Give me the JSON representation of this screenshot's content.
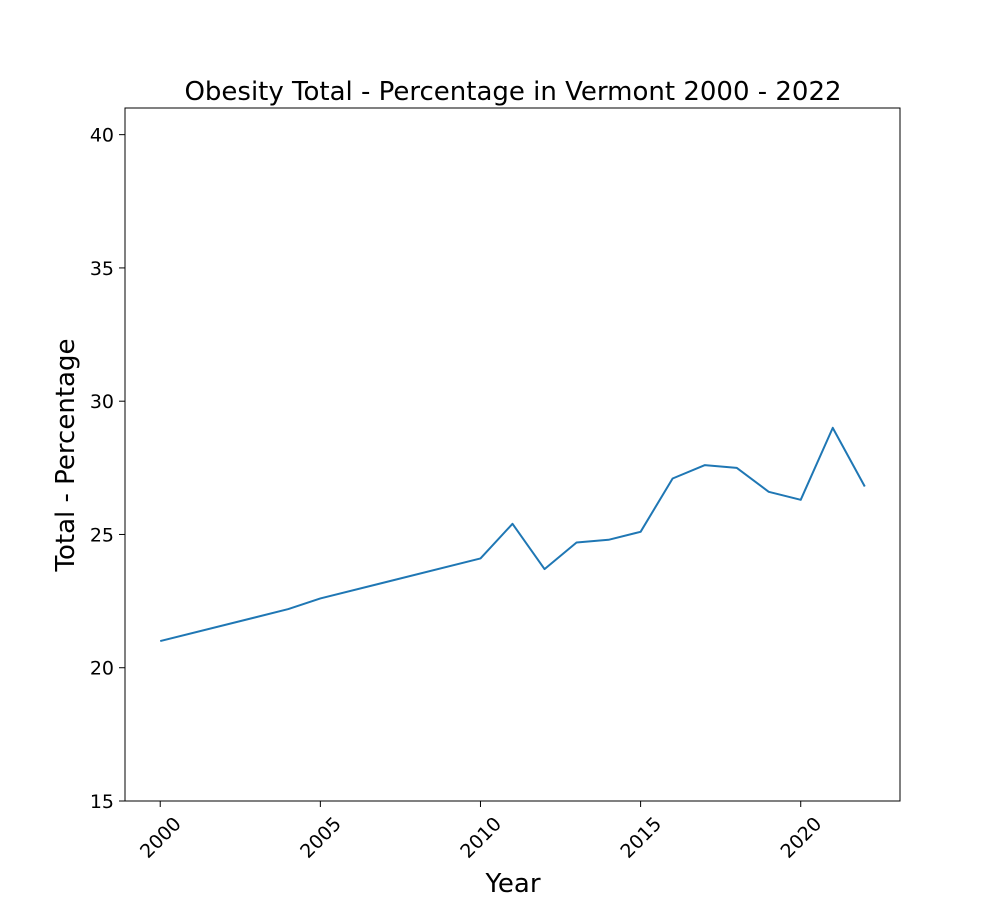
{
  "chart_data": {
    "type": "line",
    "title": "Obesity Total - Percentage in Vermont 2000 - 2022",
    "xlabel": "Year",
    "ylabel": "Total - Percentage",
    "x": [
      2000,
      2004,
      2005,
      2010,
      2011,
      2012,
      2013,
      2014,
      2015,
      2016,
      2017,
      2018,
      2019,
      2020,
      2021,
      2022
    ],
    "series": [
      {
        "values": [
          21.0,
          22.2,
          22.6,
          24.1,
          25.4,
          23.7,
          24.7,
          24.8,
          25.1,
          27.1,
          27.6,
          27.5,
          26.6,
          26.3,
          29.0,
          26.8
        ]
      }
    ],
    "xlim": [
      1998.9,
      2023.1
    ],
    "ylim": [
      15,
      41
    ],
    "xticks": [
      "2000",
      "2005",
      "2010",
      "2015",
      "2020"
    ],
    "yticks": [
      "15",
      "20",
      "25",
      "30",
      "35",
      "40"
    ],
    "grid": false,
    "line_color": "#1f77b4"
  }
}
